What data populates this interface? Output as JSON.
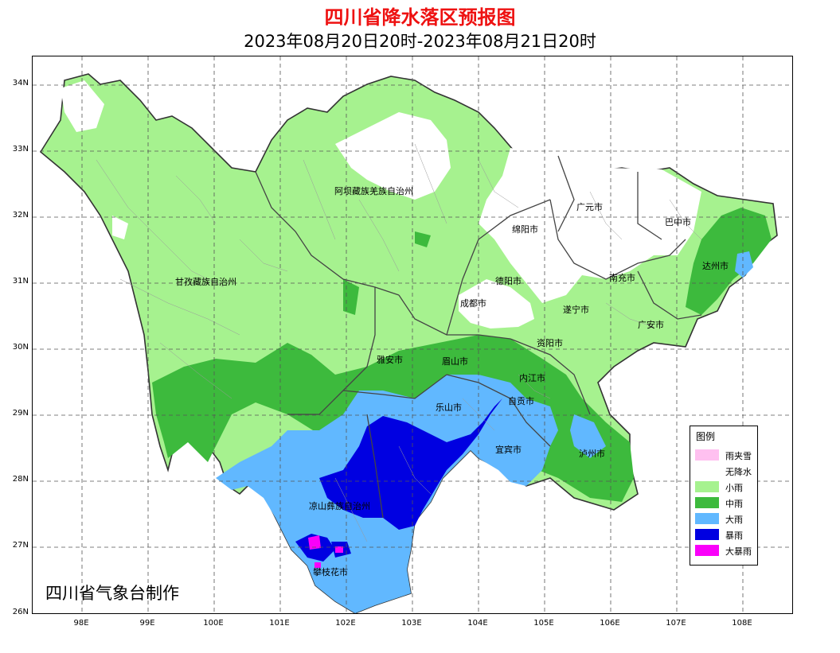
{
  "header": {
    "title": "四川省降水落区预报图",
    "subtitle": "2023年08月20日20时-2023年08月21日20时"
  },
  "axes": {
    "latitude_labels": [
      "34N",
      "33N",
      "32N",
      "31N",
      "30N",
      "29N",
      "28N",
      "27N",
      "26N"
    ],
    "longitude_labels": [
      "98E",
      "99E",
      "100E",
      "101E",
      "102E",
      "103E",
      "104E",
      "105E",
      "106E",
      "107E",
      "108E"
    ],
    "gridlines": "dashed"
  },
  "cities": [
    {
      "id": "aba",
      "name": "阿坝藏族羌族自治州"
    },
    {
      "id": "ganzi",
      "name": "甘孜藏族自治州"
    },
    {
      "id": "guangyuan",
      "name": "广元市"
    },
    {
      "id": "bazhong",
      "name": "巴中市"
    },
    {
      "id": "mianyang",
      "name": "绵阳市"
    },
    {
      "id": "dazhou",
      "name": "达州市"
    },
    {
      "id": "deyang",
      "name": "德阳市"
    },
    {
      "id": "nanchong",
      "name": "南充市"
    },
    {
      "id": "chengdu",
      "name": "成都市"
    },
    {
      "id": "suining",
      "name": "遂宁市"
    },
    {
      "id": "guangan",
      "name": "广安市"
    },
    {
      "id": "ziyang",
      "name": "资阳市"
    },
    {
      "id": "yaan",
      "name": "雅安市"
    },
    {
      "id": "meishan",
      "name": "眉山市"
    },
    {
      "id": "neijiang",
      "name": "内江市"
    },
    {
      "id": "zigong",
      "name": "自贡市"
    },
    {
      "id": "leshan",
      "name": "乐山市"
    },
    {
      "id": "yibin",
      "name": "宜宾市"
    },
    {
      "id": "luzhou",
      "name": "泸州市"
    },
    {
      "id": "liangshan",
      "name": "凉山彝族自治州"
    },
    {
      "id": "panzhihua",
      "name": "攀枝花市"
    }
  ],
  "legend": {
    "title": "图例",
    "items": [
      {
        "label": "雨夹雪",
        "color": "#ffc0f0"
      },
      {
        "label": "无降水",
        "color": "#ffffff"
      },
      {
        "label": "小雨",
        "color": "#a6f28f"
      },
      {
        "label": "中雨",
        "color": "#3dba3d"
      },
      {
        "label": "大雨",
        "color": "#61b8ff"
      },
      {
        "label": "暴雨",
        "color": "#0000e1"
      },
      {
        "label": "大暴雨",
        "color": "#fa00fa"
      }
    ]
  },
  "footer": {
    "credit": "四川省气象台制作"
  }
}
